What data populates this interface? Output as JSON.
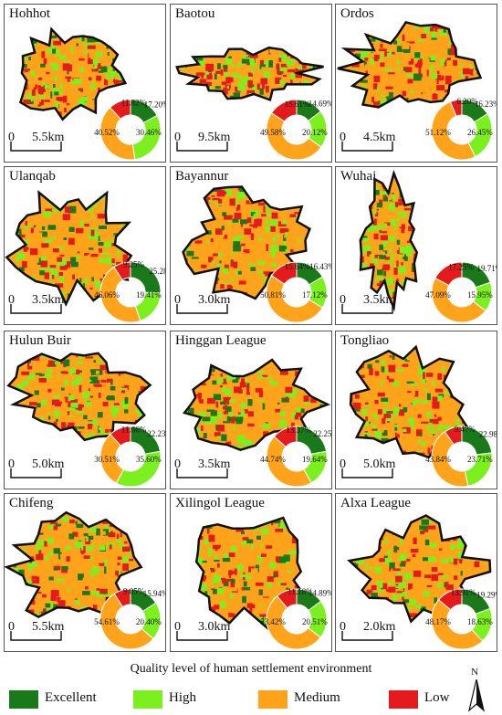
{
  "colors": {
    "Excellent": "#1a7a1a",
    "High": "#7cf01e",
    "Medium": "#ffa31a",
    "Low": "#e41a1c"
  },
  "panels": [
    {
      "name": "Hohhot",
      "scale_zero": "0",
      "scale_label": "5.5km",
      "shares": {
        "Excellent": 17.2,
        "High": 30.46,
        "Medium": 40.52,
        "Low": 11.82
      },
      "labels": {
        "Excellent": "17.20%",
        "High": "30.46%",
        "Medium": "40.52%",
        "Low": "11.82%"
      }
    },
    {
      "name": "Baotou",
      "scale_zero": "0",
      "scale_label": "9.5km",
      "shares": {
        "Excellent": 14.69,
        "High": 20.12,
        "Medium": 49.58,
        "Low": 15.61
      },
      "labels": {
        "Excellent": "14.69%",
        "High": "20.12%",
        "Medium": "49.58%",
        "Low": "15.61%"
      }
    },
    {
      "name": "Ordos",
      "scale_zero": "0",
      "scale_label": "4.5km",
      "shares": {
        "Excellent": 16.23,
        "High": 26.45,
        "Medium": 51.12,
        "Low": 6.2
      },
      "labels": {
        "Excellent": "16.23%",
        "High": "26.45%",
        "Medium": "51.12%",
        "Low": "6.20%"
      }
    },
    {
      "name": "Ulanqab",
      "scale_zero": "0",
      "scale_label": "3.5km",
      "shares": {
        "Excellent": 25.28,
        "High": 19.41,
        "Medium": 46.06,
        "Low": 9.25
      },
      "labels": {
        "Excellent": "25.28%",
        "High": "19.41%",
        "Medium": "46.06%",
        "Low": "9.25%"
      }
    },
    {
      "name": "Bayannur",
      "scale_zero": "0",
      "scale_label": "3.0km",
      "shares": {
        "Excellent": 16.43,
        "High": 17.12,
        "Medium": 50.81,
        "Low": 15.64
      },
      "labels": {
        "Excellent": "16.43%",
        "High": "17.12%",
        "Medium": "50.81%",
        "Low": "15.64%"
      }
    },
    {
      "name": "Wuhai",
      "scale_zero": "0",
      "scale_label": "3.5km",
      "shares": {
        "Excellent": 19.71,
        "High": 15.95,
        "Medium": 47.09,
        "Low": 17.25
      },
      "labels": {
        "Excellent": "19.71%",
        "High": "15.95%",
        "Medium": "47.09%",
        "Low": "17.25%"
      }
    },
    {
      "name": "Hulun Buir",
      "scale_zero": "0",
      "scale_label": "5.0km",
      "shares": {
        "Excellent": 22.23,
        "High": 35.6,
        "Medium": 30.51,
        "Low": 11.66
      },
      "labels": {
        "Excellent": "22.23%",
        "High": "35.60%",
        "Medium": "30.51%",
        "Low": "11.66%"
      }
    },
    {
      "name": "Hinggan League",
      "scale_zero": "0",
      "scale_label": "3.5km",
      "shares": {
        "Excellent": 22.25,
        "High": 19.64,
        "Medium": 44.74,
        "Low": 13.37
      },
      "labels": {
        "Excellent": "22.25%",
        "High": "19.64%",
        "Medium": "44.74%",
        "Low": "13.37%"
      }
    },
    {
      "name": "Tongliao",
      "scale_zero": "0",
      "scale_label": "5.0km",
      "shares": {
        "Excellent": 22.98,
        "High": 23.71,
        "Medium": 43.84,
        "Low": 9.47
      },
      "labels": {
        "Excellent": "22.98%",
        "High": "23.71%",
        "Medium": "43.84%",
        "Low": "9.47%"
      }
    },
    {
      "name": "Chifeng",
      "scale_zero": "0",
      "scale_label": "5.5km",
      "shares": {
        "Excellent": 15.94,
        "High": 20.4,
        "Medium": 54.61,
        "Low": 9.05
      },
      "labels": {
        "Excellent": "15.94%",
        "High": "20.40%",
        "Medium": "54.61%",
        "Low": "9.05%"
      }
    },
    {
      "name": "Xilingol League",
      "scale_zero": "0",
      "scale_label": "3.0km",
      "shares": {
        "Excellent": 14.89,
        "High": 20.51,
        "Medium": 53.42,
        "Low": 11.18
      },
      "labels": {
        "Excellent": "14.89%",
        "High": "20.51%",
        "Medium": "53.42%",
        "Low": "11.18%"
      }
    },
    {
      "name": "Alxa League",
      "scale_zero": "0",
      "scale_label": "2.0km",
      "shares": {
        "Excellent": 19.29,
        "High": 18.63,
        "Medium": 48.17,
        "Low": 13.91
      },
      "labels": {
        "Excellent": "19.29%",
        "High": "18.63%",
        "Medium": "48.17%",
        "Low": "13.91%"
      }
    }
  ],
  "legend_title": "Quality level of human settlement environment",
  "legend": [
    {
      "key": "Excellent",
      "label": "Excellent"
    },
    {
      "key": "High",
      "label": "High"
    },
    {
      "key": "Medium",
      "label": "Medium"
    },
    {
      "key": "Low",
      "label": "Low"
    }
  ],
  "north_label": "N"
}
